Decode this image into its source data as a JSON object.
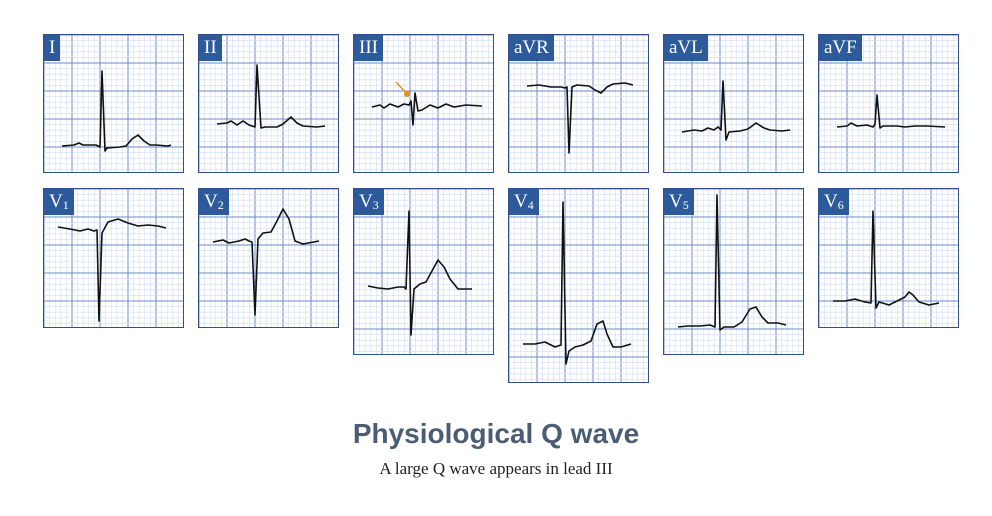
{
  "title": "Physiological Q wave",
  "subtitle": "A large Q wave appears in lead III",
  "colors": {
    "label_bg": "#2d5a9b",
    "grid_major": "#6c8ec4",
    "grid_minor": "#cfdcf0",
    "trace": "#111111",
    "arrow": "#e8921c"
  },
  "leads": [
    {
      "id": "I",
      "label": "I",
      "sub": ""
    },
    {
      "id": "II",
      "label": "II",
      "sub": ""
    },
    {
      "id": "III",
      "label": "III",
      "sub": ""
    },
    {
      "id": "aVR",
      "label": "aVR",
      "sub": ""
    },
    {
      "id": "aVL",
      "label": "aVL",
      "sub": ""
    },
    {
      "id": "aVF",
      "label": "aVF",
      "sub": ""
    },
    {
      "id": "V1",
      "label": "V",
      "sub": "1"
    },
    {
      "id": "V2",
      "label": "V",
      "sub": "2"
    },
    {
      "id": "V3",
      "label": "V",
      "sub": "3"
    },
    {
      "id": "V4",
      "label": "V",
      "sub": "4"
    },
    {
      "id": "V5",
      "label": "V",
      "sub": "5"
    },
    {
      "id": "V6",
      "label": "V",
      "sub": "6"
    }
  ]
}
